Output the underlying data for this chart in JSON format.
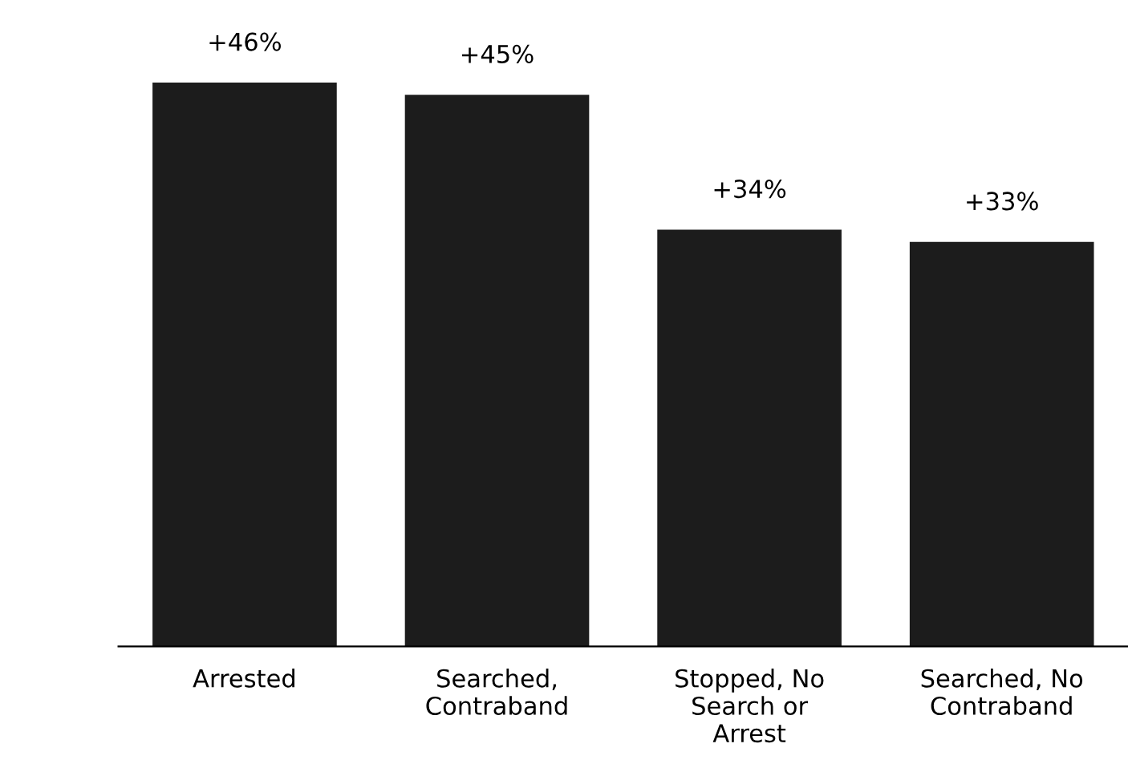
{
  "chart_data": {
    "type": "bar",
    "categories": [
      "Arrested",
      "Searched,\nContraband",
      "Stopped, No\nSearch or\nArrest",
      "Searched, No\nContraband"
    ],
    "values": [
      46,
      45,
      34,
      33
    ],
    "value_labels": [
      "+46%",
      "+45%",
      "+34%",
      "+33%"
    ],
    "color": "#1c1c1c"
  }
}
